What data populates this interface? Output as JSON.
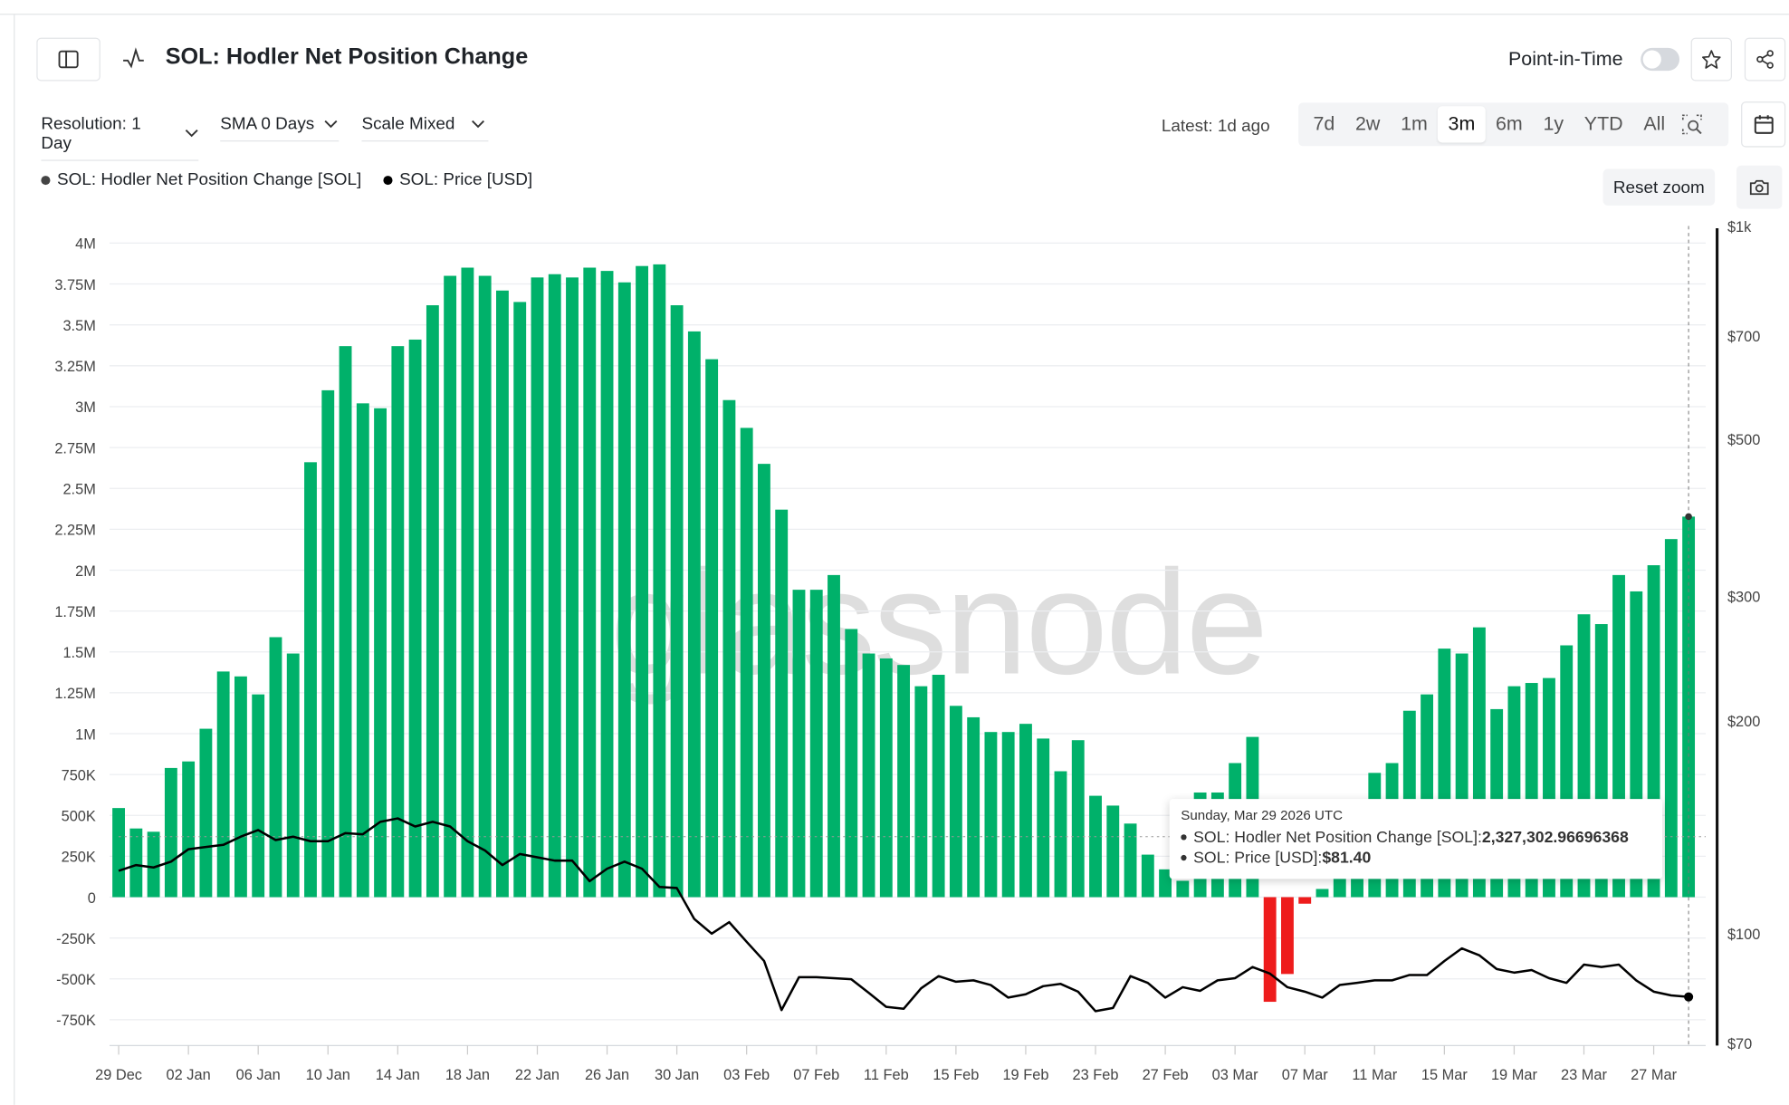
{
  "header": {
    "title": "SOL: Hodler Net Position Change",
    "point_in_time_label": "Point-in-Time",
    "point_in_time_on": false
  },
  "controls": {
    "resolution": "Resolution: 1 Day",
    "sma": "SMA 0 Days",
    "scale": "Scale Mixed",
    "latest": "Latest: 1d ago",
    "ranges": [
      "7d",
      "2w",
      "1m",
      "3m",
      "6m",
      "1y",
      "YTD",
      "All"
    ],
    "active_range": "3m",
    "reset_zoom": "Reset zoom"
  },
  "watermark": "glassnode",
  "tooltip": {
    "date": "Sunday, Mar 29 2026 UTC",
    "s1_label": "SOL: Hodler Net Position Change [SOL]: ",
    "s1_value": "2,327,302.96696368",
    "s2_label": "SOL: Price [USD]: ",
    "s2_value": "$81.40"
  },
  "colors": {
    "positive": "#00b16a",
    "negative": "#ee1c1c",
    "price": "#000000"
  },
  "chart_data": {
    "type": "bar+line",
    "x_start": "29 Dec",
    "x_end": "29 Mar",
    "x_tick_labels": [
      "29 Dec",
      "02 Jan",
      "06 Jan",
      "10 Jan",
      "14 Jan",
      "18 Jan",
      "22 Jan",
      "26 Jan",
      "30 Jan",
      "03 Feb",
      "07 Feb",
      "11 Feb",
      "15 Feb",
      "19 Feb",
      "23 Feb",
      "27 Feb",
      "03 Mar",
      "07 Mar",
      "11 Mar",
      "15 Mar",
      "19 Mar",
      "23 Mar",
      "27 Mar"
    ],
    "left_axis": {
      "ylim": [
        -900000,
        4000000
      ],
      "ticks": [
        4000000,
        3750000,
        3500000,
        3250000,
        3000000,
        2750000,
        2500000,
        2250000,
        2000000,
        1750000,
        1500000,
        1250000,
        1000000,
        750000,
        500000,
        250000,
        0,
        -250000,
        -500000,
        -750000
      ],
      "tick_labels": [
        "4M",
        "3.75M",
        "3.5M",
        "3.25M",
        "3M",
        "2.75M",
        "2.5M",
        "2.25M",
        "2M",
        "1.75M",
        "1.5M",
        "1.25M",
        "1M",
        "750K",
        "500K",
        "250K",
        "0",
        "-250K",
        "-500K",
        "-750K"
      ]
    },
    "right_axis": {
      "scale": "log",
      "ylim": [
        70,
        1000
      ],
      "ticks": [
        1000,
        700,
        500,
        300,
        200,
        100,
        70
      ],
      "tick_labels": [
        "$1k",
        "$700",
        "$500",
        "$300",
        "$200",
        "$100",
        "$70"
      ]
    },
    "grid": true,
    "legend": "top-left",
    "series": [
      {
        "name": "SOL: Hodler Net Position Change [SOL]",
        "type": "bar",
        "values": [
          545000,
          420000,
          400000,
          790000,
          830000,
          1030000,
          1380000,
          1350000,
          1240000,
          1590000,
          1490000,
          2660000,
          3100000,
          3370000,
          3020000,
          2990000,
          3370000,
          3410000,
          3620000,
          3800000,
          3850000,
          3800000,
          3710000,
          3640000,
          3790000,
          3810000,
          3790000,
          3850000,
          3830000,
          3760000,
          3860000,
          3870000,
          3620000,
          3460000,
          3290000,
          3040000,
          2870000,
          2650000,
          2370000,
          1880000,
          1880000,
          1970000,
          1640000,
          1490000,
          1460000,
          1420000,
          1290000,
          1360000,
          1170000,
          1100000,
          1010000,
          1010000,
          1060000,
          970000,
          770000,
          960000,
          620000,
          560000,
          450000,
          260000,
          170000,
          100000,
          640000,
          640000,
          820000,
          980000,
          -640000,
          -470000,
          -40000,
          50000,
          200000,
          400000,
          760000,
          820000,
          1140000,
          1240000,
          1520000,
          1490000,
          1650000,
          1150000,
          1290000,
          1310000,
          1340000,
          1540000,
          1730000,
          1670000,
          1970000,
          1870000,
          2030000,
          2190000,
          2327303
        ]
      },
      {
        "name": "SOL: Price [USD]",
        "type": "line",
        "values": [
          122.7,
          125.0,
          124.0,
          126.4,
          131.6,
          132.6,
          133.5,
          137.1,
          140.1,
          135.6,
          137.1,
          135.1,
          135.1,
          138.7,
          138.2,
          143.9,
          145.5,
          141.7,
          143.9,
          141.7,
          135.1,
          131.1,
          125.0,
          129.6,
          128.2,
          126.8,
          126.8,
          118.6,
          123.5,
          126.4,
          123.5,
          116.4,
          116.0,
          104.9,
          100.0,
          103.8,
          97.4,
          91.5,
          78.0,
          86.8,
          86.8,
          86.5,
          86.2,
          82.5,
          78.8,
          78.3,
          83.7,
          87.1,
          85.5,
          85.9,
          84.6,
          81.2,
          82.1,
          84.3,
          84.9,
          82.8,
          77.7,
          78.5,
          87.1,
          85.2,
          81.2,
          84.0,
          83.0,
          85.9,
          86.5,
          89.7,
          87.8,
          84.0,
          82.8,
          81.2,
          84.6,
          85.2,
          85.9,
          85.9,
          87.4,
          87.4,
          91.5,
          95.3,
          93.2,
          89.1,
          88.1,
          88.8,
          86.5,
          85.2,
          90.4,
          89.7,
          90.4,
          85.9,
          82.8,
          81.8,
          81.4
        ]
      }
    ]
  }
}
